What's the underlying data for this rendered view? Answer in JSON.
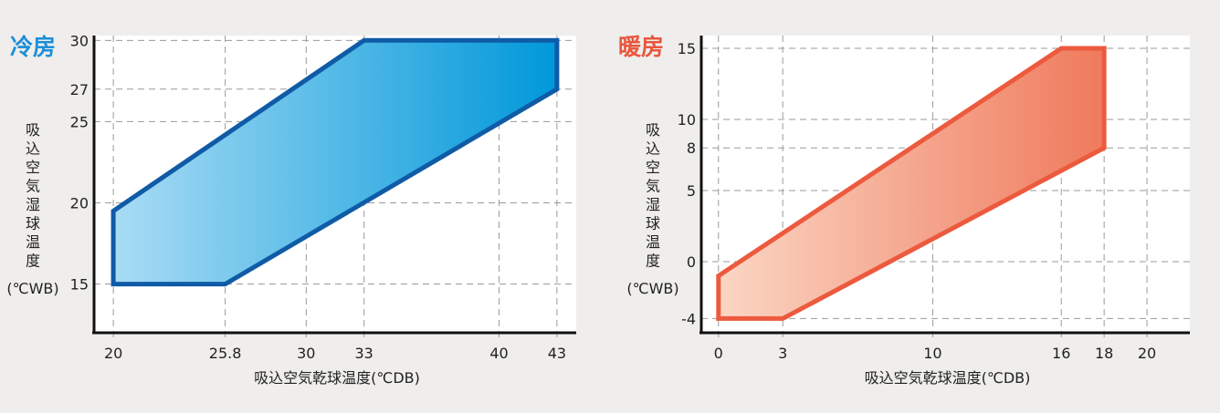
{
  "chart_data": [
    {
      "type": "area",
      "title": "冷房",
      "xlabel": "吸込空気乾球温度(℃DB)",
      "ylabel_chars": [
        "吸",
        "込",
        "空",
        "気",
        "湿",
        "球",
        "温",
        "度"
      ],
      "ylabel_unit": "(℃WB)",
      "xlim": [
        19,
        44
      ],
      "ylim": [
        12,
        30.3
      ],
      "x_ticks": [
        20,
        25.8,
        30,
        33,
        40,
        43
      ],
      "x_tick_labels": [
        "20",
        "25.8",
        "30",
        "33",
        "40",
        "43"
      ],
      "y_ticks": [
        15,
        20,
        25,
        27,
        30
      ],
      "y_tick_labels": [
        "15",
        "20",
        "25",
        "27",
        "30"
      ],
      "grid": true,
      "region": {
        "x": [
          20,
          20,
          33,
          43,
          43,
          25.8
        ],
        "y": [
          15,
          19.5,
          30,
          30,
          27,
          15
        ]
      },
      "colors": {
        "title": "#1a8fd8",
        "outline": "#0f5ba6",
        "fill_start": "#a9dcf4",
        "fill_end": "#0098da"
      }
    },
    {
      "type": "area",
      "title": "暖房",
      "xlabel": "吸込空気乾球温度(℃DB)",
      "ylabel_chars": [
        "吸",
        "込",
        "空",
        "気",
        "湿",
        "球",
        "温",
        "度"
      ],
      "ylabel_unit": "(℃WB)",
      "xlim": [
        -0.8,
        22
      ],
      "ylim": [
        -5,
        15.9
      ],
      "x_ticks": [
        0,
        3,
        10,
        16,
        18,
        20
      ],
      "x_tick_labels": [
        "0",
        "3",
        "10",
        "16",
        "18",
        "20"
      ],
      "y_ticks": [
        -4,
        0,
        5,
        8,
        10,
        15
      ],
      "y_tick_labels": [
        "-4",
        "0",
        "5",
        "8",
        "10",
        "15"
      ],
      "grid": true,
      "region": {
        "x": [
          0,
          0,
          16,
          18,
          18,
          3
        ],
        "y": [
          -4,
          -1,
          15,
          15,
          8,
          -4
        ]
      },
      "colors": {
        "title": "#e8563e",
        "outline": "#ec5a3e",
        "fill_start": "#fbd6c4",
        "fill_end": "#ef7a5c"
      }
    }
  ]
}
